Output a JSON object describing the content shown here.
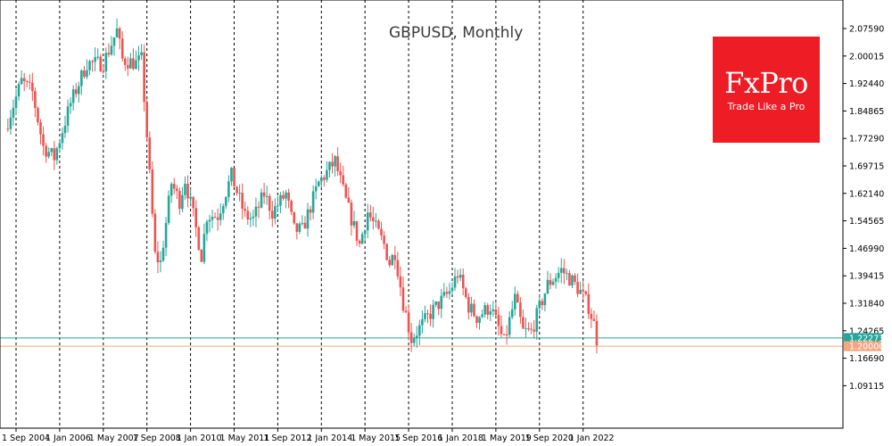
{
  "chart_data": {
    "type": "candlestick",
    "title": "GBPUSD, Monthly",
    "symbol": "GBPUSD",
    "timeframe": "Monthly",
    "ylim": [
      1.065,
      2.12
    ],
    "grid": "vertical dashed lines at each x tick",
    "y_ticks": [
      "2.07590",
      "2.00015",
      "1.92440",
      "1.84865",
      "1.77290",
      "1.69715",
      "1.62140",
      "1.54565",
      "1.46990",
      "1.39415",
      "1.31840",
      "1.24265",
      "1.16690",
      "1.09115"
    ],
    "x_ticks": [
      "1 Sep 2004",
      "1 Jan 2006",
      "1 May 2007",
      "1 Sep 2008",
      "1 Jan 2010",
      "1 May 2011",
      "1 Sep 2012",
      "1 Jan 2014",
      "1 May 2015",
      "1 Sep 2016",
      "1 Jan 2018",
      "1 May 2019",
      "1 Sep 2020",
      "1 Jan 2022"
    ],
    "price_lines": [
      {
        "label": "1.22273",
        "value": 1.22273,
        "color": "#26a69a"
      },
      {
        "label": "1.20000",
        "value": 1.2,
        "color": "#f4a582"
      }
    ],
    "colors": {
      "up": "#26a69a",
      "down": "#ef5350",
      "grid": "#000000"
    },
    "close_path": [
      [
        "2004-05",
        1.8
      ],
      [
        "2004-11",
        1.93
      ],
      [
        "2005-03",
        1.9
      ],
      [
        "2005-07",
        1.75
      ],
      [
        "2005-11",
        1.72
      ],
      [
        "2006-05",
        1.87
      ],
      [
        "2006-11",
        1.98
      ],
      [
        "2007-05",
        1.98
      ],
      [
        "2007-10",
        2.07
      ],
      [
        "2007-12",
        1.99
      ],
      [
        "2008-05",
        1.98
      ],
      [
        "2008-07",
        1.99
      ],
      [
        "2008-09",
        1.78
      ],
      [
        "2008-12",
        1.45
      ],
      [
        "2009-02",
        1.43
      ],
      [
        "2009-06",
        1.65
      ],
      [
        "2009-09",
        1.6
      ],
      [
        "2009-11",
        1.66
      ],
      [
        "2010-02",
        1.56
      ],
      [
        "2010-05",
        1.45
      ],
      [
        "2010-07",
        1.56
      ],
      [
        "2010-11",
        1.56
      ],
      [
        "2011-04",
        1.67
      ],
      [
        "2011-09",
        1.56
      ],
      [
        "2011-12",
        1.55
      ],
      [
        "2012-04",
        1.62
      ],
      [
        "2012-07",
        1.57
      ],
      [
        "2012-12",
        1.62
      ],
      [
        "2013-03",
        1.52
      ],
      [
        "2013-06",
        1.52
      ],
      [
        "2013-12",
        1.65
      ],
      [
        "2014-06",
        1.71
      ],
      [
        "2014-10",
        1.6
      ],
      [
        "2015-03",
        1.48
      ],
      [
        "2015-06",
        1.57
      ],
      [
        "2015-12",
        1.48
      ],
      [
        "2016-02",
        1.43
      ],
      [
        "2016-04",
        1.46
      ],
      [
        "2016-07",
        1.32
      ],
      [
        "2016-10",
        1.22
      ],
      [
        "2017-01",
        1.25
      ],
      [
        "2017-06",
        1.3
      ],
      [
        "2017-12",
        1.35
      ],
      [
        "2018-03",
        1.4
      ],
      [
        "2018-07",
        1.31
      ],
      [
        "2018-10",
        1.28
      ],
      [
        "2019-03",
        1.31
      ],
      [
        "2019-08",
        1.21
      ],
      [
        "2019-12",
        1.33
      ],
      [
        "2020-03",
        1.24
      ],
      [
        "2020-06",
        1.24
      ],
      [
        "2020-12",
        1.37
      ],
      [
        "2021-05",
        1.41
      ],
      [
        "2021-09",
        1.38
      ],
      [
        "2021-12",
        1.35
      ],
      [
        "2022-03",
        1.31
      ],
      [
        "2022-05",
        1.26
      ],
      [
        "2022-06",
        1.22
      ]
    ]
  },
  "logo": {
    "brand": "FxPro",
    "slogan": "Trade Like a Pro"
  }
}
